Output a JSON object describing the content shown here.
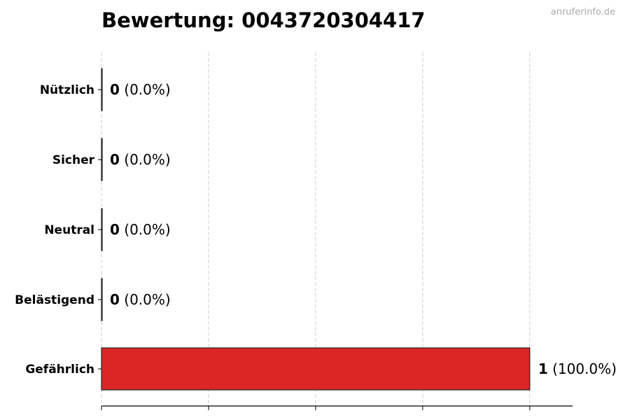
{
  "chart_data": {
    "type": "bar",
    "orientation": "horizontal",
    "title": "Bewertung: 0043720304417",
    "categories": [
      "Nützlich",
      "Sicher",
      "Neutral",
      "Belästigend",
      "Gefährlich"
    ],
    "values": [
      0,
      0,
      0,
      0,
      1
    ],
    "value_labels": [
      "0",
      "0",
      "0",
      "0",
      "1"
    ],
    "percent_labels": [
      "(0.0%)",
      "(0.0%)",
      "(0.0%)",
      "(0.0%)",
      "(100.0%)"
    ],
    "xlim": [
      0,
      1.1
    ],
    "xticks": [
      0,
      0.25,
      0.5,
      0.75,
      1.0
    ],
    "xtick_labels_shown": false,
    "grid": "x-dashed",
    "bar_color": "#dc2626",
    "edge_color": "#222222",
    "xlabel": "",
    "ylabel": ""
  },
  "watermark": "anruferinfo.de"
}
